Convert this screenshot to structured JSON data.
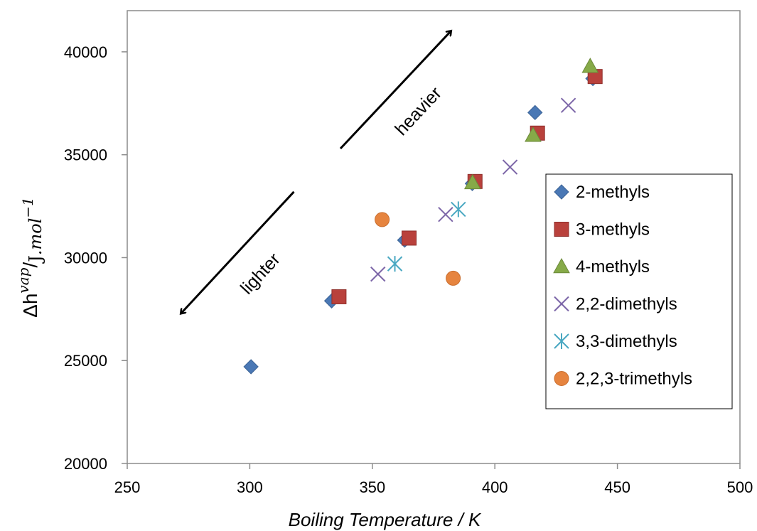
{
  "chart_data": {
    "type": "scatter",
    "xlabel": "Boiling Temperature / K",
    "ylabel": {
      "main": "Δh",
      "superscript": "vap",
      "slash": "/",
      "unit_J": "J",
      "unit_mol": ".mol",
      "unit_exp": "−1"
    },
    "xlim": [
      250,
      500
    ],
    "ylim": [
      20000,
      42000
    ],
    "xticks": [
      250,
      300,
      350,
      400,
      450,
      500
    ],
    "yticks": [
      20000,
      25000,
      30000,
      35000,
      40000
    ],
    "grid": false,
    "legend_position": "right",
    "annotations": [
      {
        "text": "heavier",
        "direction": "up-right",
        "from": [
          337,
          35300
        ],
        "to": [
          382,
          41000
        ]
      },
      {
        "text": "lighter",
        "direction": "down-left",
        "from": [
          318,
          33200
        ],
        "to": [
          272,
          27300
        ]
      }
    ],
    "series": [
      {
        "name": "2-methyls",
        "marker": "diamond",
        "color": "#4a78b5",
        "points": [
          [
            300.5,
            24700
          ],
          [
            333.4,
            27900
          ],
          [
            363.2,
            30850
          ],
          [
            390.8,
            33600
          ],
          [
            416.4,
            37050
          ],
          [
            440,
            38700
          ]
        ]
      },
      {
        "name": "3-methyls",
        "marker": "square",
        "color": "#b9413c",
        "points": [
          [
            336.4,
            28100
          ],
          [
            365.0,
            30950
          ],
          [
            391.9,
            33700
          ],
          [
            417.4,
            36050
          ],
          [
            440.9,
            38800
          ]
        ]
      },
      {
        "name": "4-methyls",
        "marker": "triangle",
        "color": "#86aa48",
        "points": [
          [
            390.9,
            33650
          ],
          [
            415.6,
            35950
          ],
          [
            438.9,
            39300
          ]
        ]
      },
      {
        "name": "2,2-dimethyls",
        "marker": "x",
        "color": "#7c66a8",
        "points": [
          [
            352.3,
            29200
          ],
          [
            379.9,
            32100
          ],
          [
            406.2,
            34400
          ],
          [
            430.0,
            37400
          ]
        ]
      },
      {
        "name": "3,3-dimethyls",
        "marker": "star",
        "color": "#4aa8c2",
        "points": [
          [
            359.2,
            29700
          ],
          [
            385.1,
            32350
          ]
        ]
      },
      {
        "name": "2,2,3-trimethyls",
        "marker": "circle",
        "color": "#e6843f",
        "points": [
          [
            354.0,
            31850
          ],
          [
            383.0,
            29000
          ]
        ]
      }
    ]
  }
}
